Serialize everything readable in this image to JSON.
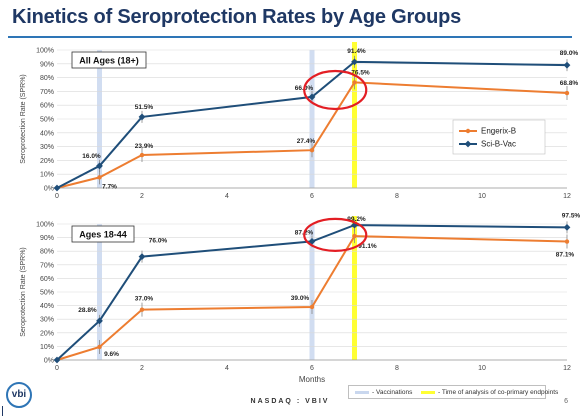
{
  "page": {
    "title": "Kinetics of Seroprotection Rates by Age Groups",
    "footer": "NASDAQ : VBIV",
    "page_number": "6",
    "logo_text": "vbi",
    "legend_bottom": {
      "vaccinations_label": "- Vaccinations",
      "endpoint_label": "- Time of analysis of co-primary endpoints",
      "vaccinations_color": "#c9d7ee",
      "endpoint_color": "#ffff33"
    }
  },
  "chart_data": [
    {
      "type": "line",
      "title": "All Ages (18+)",
      "ylabel": "Seroprotection Rate (SPR%)",
      "xlabel": "",
      "x": [
        0,
        1,
        2,
        6,
        7,
        12
      ],
      "xlim": [
        0,
        12
      ],
      "xticks": [
        "0",
        "2",
        "4",
        "6",
        "8",
        "10",
        "12"
      ],
      "ylim": [
        0,
        100
      ],
      "yticks": [
        "0%",
        "10%",
        "20%",
        "30%",
        "40%",
        "50%",
        "60%",
        "70%",
        "80%",
        "90%",
        "100%"
      ],
      "grid": true,
      "legend_position": "right",
      "series": [
        {
          "name": "Engerix-B",
          "color": "#ed7d31",
          "values": [
            0,
            7.7,
            23.9,
            27.4,
            76.5,
            68.8
          ],
          "labels": [
            "",
            "7.7%",
            "23.9%",
            "27.4%",
            "76.5%",
            "68.8%"
          ]
        },
        {
          "name": "Sci-B-Vac",
          "color": "#1f4e79",
          "values": [
            0,
            16.0,
            51.5,
            66.0,
            91.4,
            89.0
          ],
          "labels": [
            "",
            "16.0%",
            "51.5%",
            "66.0%",
            "91.4%",
            "89.0%"
          ]
        }
      ],
      "vaccination_months": [
        0,
        1,
        6
      ],
      "endpoint_month": 7
    },
    {
      "type": "line",
      "title": "Ages 18-44",
      "ylabel": "Seroprotection Rate (SPR%)",
      "xlabel": "Months",
      "x": [
        0,
        1,
        2,
        6,
        7,
        12
      ],
      "xlim": [
        0,
        12
      ],
      "xticks": [
        "0",
        "2",
        "4",
        "6",
        "8",
        "10",
        "12"
      ],
      "ylim": [
        0,
        100
      ],
      "yticks": [
        "0%",
        "10%",
        "20%",
        "30%",
        "40%",
        "50%",
        "60%",
        "70%",
        "80%",
        "90%",
        "100%"
      ],
      "grid": true,
      "series": [
        {
          "name": "Engerix-B",
          "color": "#ed7d31",
          "values": [
            0,
            9.6,
            37.0,
            39.0,
            91.1,
            87.1
          ],
          "labels": [
            "",
            "9.6%",
            "37.0%",
            "39.0%",
            "91.1%",
            "87.1%"
          ]
        },
        {
          "name": "Sci-B-Vac",
          "color": "#1f4e79",
          "values": [
            0,
            28.8,
            76.0,
            87.2,
            99.2,
            97.5
          ],
          "labels": [
            "",
            "28.8%",
            "76.0%",
            "87.2%",
            "99.2%",
            "97.5%"
          ]
        }
      ],
      "vaccination_months": [
        0,
        1,
        6
      ],
      "endpoint_month": 7
    }
  ]
}
